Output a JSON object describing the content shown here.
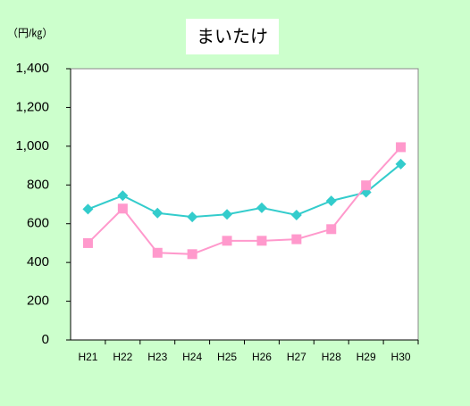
{
  "chart_data": {
    "type": "line",
    "title": "まいたけ",
    "unit_label": "（円/㎏）",
    "categories": [
      "H21",
      "H22",
      "H23",
      "H24",
      "H25",
      "H26",
      "H27",
      "H28",
      "H29",
      "H30"
    ],
    "series": [
      {
        "color": "#33cccc",
        "marker": "diamond",
        "values": [
          675,
          745,
          655,
          635,
          648,
          682,
          645,
          718,
          762,
          908
        ]
      },
      {
        "color": "#ff99cc",
        "marker": "square",
        "values": [
          500,
          678,
          450,
          443,
          512,
          512,
          520,
          572,
          798,
          995
        ]
      }
    ],
    "ylim": [
      0,
      1400
    ],
    "yticks": [
      0,
      200,
      400,
      600,
      800,
      {
        "value": 1000,
        "label": "1,000"
      },
      {
        "value": 1200,
        "label": "1,200"
      },
      {
        "value": 1400,
        "label": "1,400"
      }
    ],
    "grid": false
  }
}
